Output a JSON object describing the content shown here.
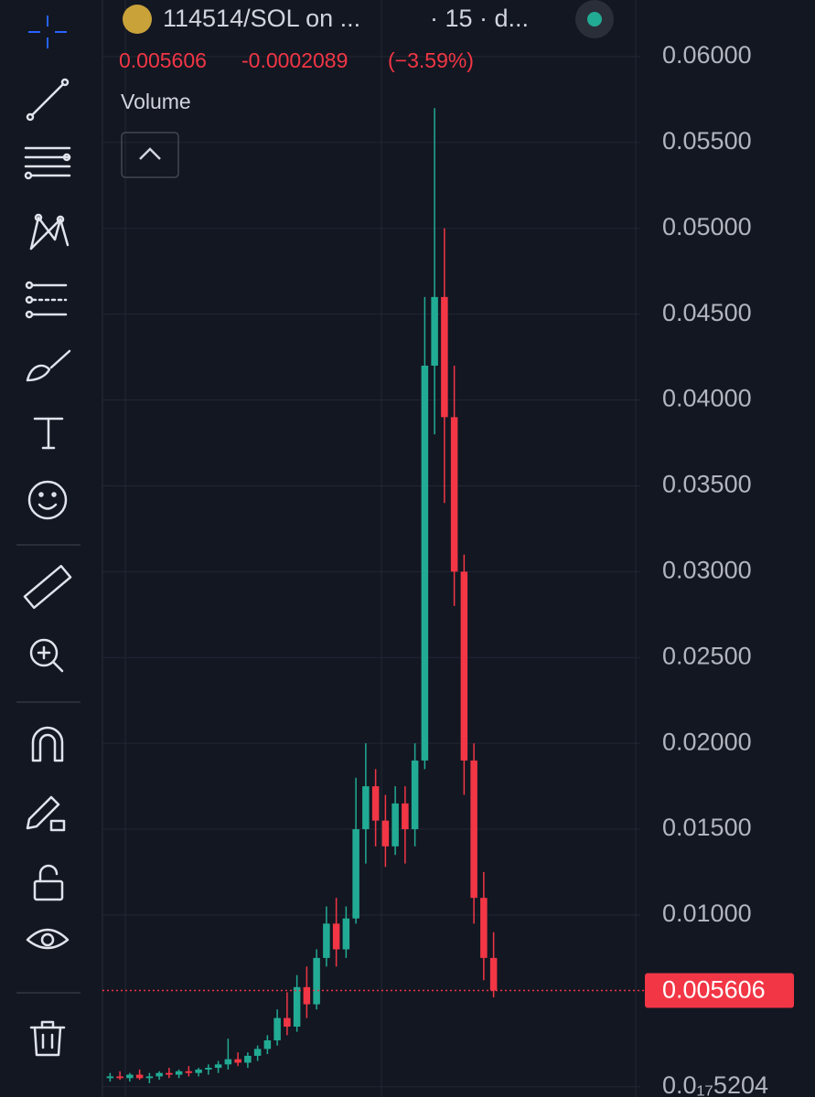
{
  "header": {
    "symbol": "114514/SOL on ...",
    "interval": "· 15 · d...",
    "change": "-0.0002089",
    "change_pct": "(−3.59%)",
    "indicator": "Volume"
  },
  "chart_data": {
    "type": "candlestick",
    "categories": [
      null,
      null,
      null,
      null,
      null,
      null,
      null,
      null,
      null,
      null,
      null,
      null,
      null,
      null,
      null,
      null,
      null,
      null,
      null,
      null,
      null,
      null,
      null,
      null,
      null,
      null,
      null,
      null,
      null,
      null,
      null,
      null,
      null,
      null,
      null,
      null,
      null,
      null,
      null,
      null
    ],
    "open": [
      0.0005,
      0.0006,
      0.0005,
      0.0007,
      0.0005,
      0.0006,
      0.0008,
      0.0007,
      0.0009,
      0.0008,
      0.001,
      0.0011,
      0.0013,
      0.0016,
      0.0014,
      0.0018,
      0.0022,
      0.0027,
      0.004,
      0.0035,
      0.0058,
      0.0048,
      0.0075,
      0.0095,
      0.008,
      0.0098,
      0.015,
      0.0175,
      0.0155,
      0.014,
      0.0165,
      0.015,
      0.019,
      0.042,
      0.046,
      0.039,
      0.03,
      0.019,
      0.011,
      0.0075
    ],
    "high": [
      0.0008,
      0.0009,
      0.0008,
      0.001,
      0.0008,
      0.0009,
      0.0011,
      0.001,
      0.0012,
      0.0011,
      0.0013,
      0.0015,
      0.0028,
      0.002,
      0.002,
      0.0024,
      0.003,
      0.0045,
      0.0055,
      0.0065,
      0.007,
      0.008,
      0.0105,
      0.011,
      0.0105,
      0.018,
      0.02,
      0.0185,
      0.017,
      0.0175,
      0.0175,
      0.02,
      0.046,
      0.057,
      0.05,
      0.042,
      0.031,
      0.02,
      0.0125,
      0.009
    ],
    "low": [
      0.0003,
      0.0004,
      0.0003,
      0.0004,
      0.0002,
      0.0004,
      0.0005,
      0.0005,
      0.0006,
      0.0006,
      0.0007,
      0.0008,
      0.001,
      0.0012,
      0.0011,
      0.0015,
      0.0019,
      0.0024,
      0.003,
      0.0032,
      0.004,
      0.0045,
      0.007,
      0.007,
      0.0075,
      0.0095,
      0.013,
      0.014,
      0.0128,
      0.0135,
      0.013,
      0.014,
      0.0185,
      0.038,
      0.034,
      0.028,
      0.017,
      0.0095,
      0.0062,
      0.0052
    ],
    "close": [
      0.0006,
      0.0005,
      0.0007,
      0.0005,
      0.0006,
      0.0008,
      0.0007,
      0.0009,
      0.0008,
      0.001,
      0.0011,
      0.0013,
      0.0016,
      0.0014,
      0.0018,
      0.0022,
      0.0027,
      0.004,
      0.0035,
      0.0058,
      0.0048,
      0.0075,
      0.0095,
      0.008,
      0.0098,
      0.015,
      0.0175,
      0.0155,
      0.014,
      0.0165,
      0.015,
      0.019,
      0.042,
      0.046,
      0.039,
      0.03,
      0.019,
      0.011,
      0.0075,
      0.0056
    ],
    "up_color": "#22ab94",
    "down_color": "#f23645",
    "last_price": 0.005606,
    "ylim": [
      -0.0006,
      0.0633
    ],
    "yticks": [
      {
        "value": 5.204e-18,
        "label": "0.0₁₇5204"
      },
      {
        "value": 0.01,
        "label": "0.01000"
      },
      {
        "value": 0.015,
        "label": "0.01500"
      },
      {
        "value": 0.02,
        "label": "0.02000"
      },
      {
        "value": 0.025,
        "label": "0.02500"
      },
      {
        "value": 0.03,
        "label": "0.03000"
      },
      {
        "value": 0.035,
        "label": "0.03500"
      },
      {
        "value": 0.04,
        "label": "0.04000"
      },
      {
        "value": 0.045,
        "label": "0.04500"
      },
      {
        "value": 0.05,
        "label": "0.05000"
      },
      {
        "value": 0.055,
        "label": "0.05500"
      },
      {
        "value": 0.06,
        "label": "0.06000"
      }
    ],
    "grid": true
  }
}
